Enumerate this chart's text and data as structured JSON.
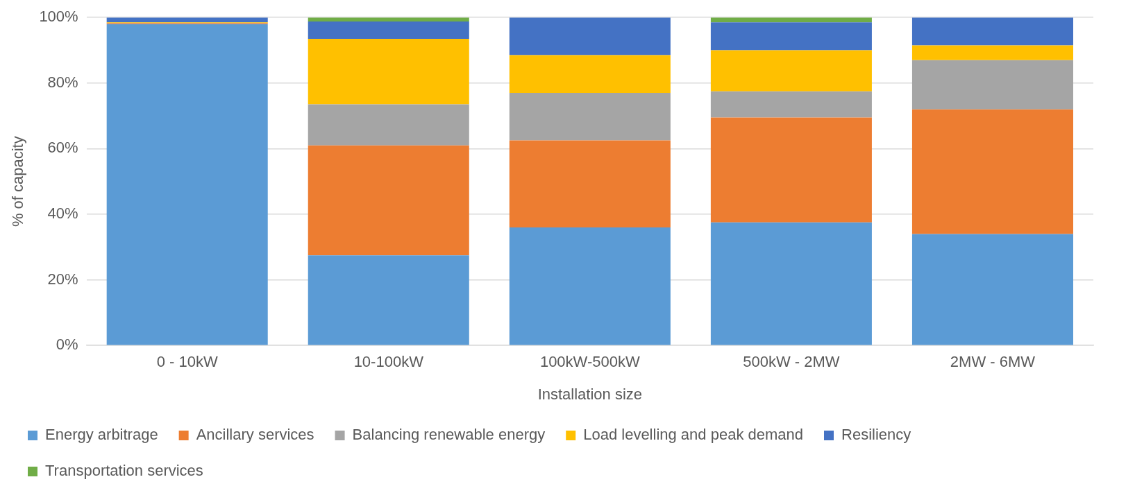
{
  "chart_data": {
    "type": "bar",
    "stacked": true,
    "xlabel": "Installation size",
    "ylabel": "% of capacity",
    "categories": [
      "0 - 10kW",
      "10-100kW",
      "100kW-500kW",
      "500kW - 2MW",
      "2MW - 6MW"
    ],
    "series": [
      {
        "name": "Energy arbitrage",
        "color": "#5b9bd5",
        "values": [
          98,
          27.5,
          36,
          37.5,
          34
        ]
      },
      {
        "name": "Ancillary services",
        "color": "#ed7d31",
        "values": [
          0.3,
          33.5,
          26.5,
          32,
          38
        ]
      },
      {
        "name": "Balancing renewable energy",
        "color": "#a5a5a5",
        "values": [
          0,
          12.5,
          14.5,
          8,
          15
        ]
      },
      {
        "name": "Load levelling and peak demand",
        "color": "#ffc000",
        "values": [
          0.2,
          20,
          11.5,
          12.5,
          4.5
        ]
      },
      {
        "name": "Resiliency",
        "color": "#4472c4",
        "values": [
          1.5,
          5.3,
          11.5,
          8.5,
          8.5
        ]
      },
      {
        "name": "Transportation services",
        "color": "#70ad47",
        "values": [
          0,
          1.2,
          0,
          1.5,
          0
        ]
      }
    ],
    "ylim": [
      0,
      100
    ],
    "yticks": [
      {
        "value": 0,
        "label": "0%"
      },
      {
        "value": 20,
        "label": "20%"
      },
      {
        "value": 40,
        "label": "40%"
      },
      {
        "value": 60,
        "label": "60%"
      },
      {
        "value": 80,
        "label": "80%"
      },
      {
        "value": 100,
        "label": "100%"
      }
    ],
    "grid": "y",
    "legend": "bottom"
  }
}
